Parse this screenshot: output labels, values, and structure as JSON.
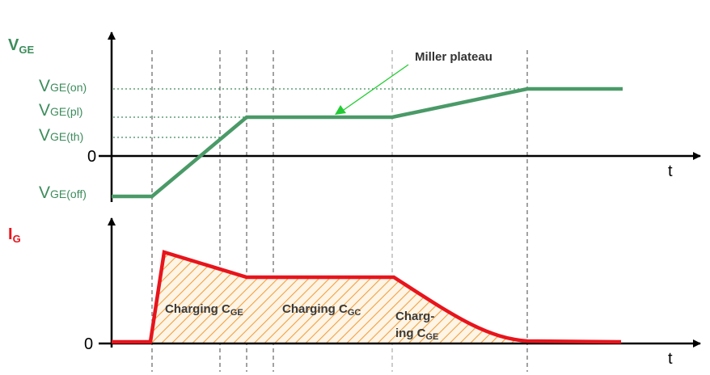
{
  "top_axis": {
    "label": {
      "main": "V",
      "sub": "GE"
    },
    "x_label": "t",
    "levels": [
      {
        "main": "V",
        "sub": "GE(on)"
      },
      {
        "main": "V",
        "sub": "GE(pl)"
      },
      {
        "main": "V",
        "sub": "GE(th)"
      },
      {
        "main": "0"
      },
      {
        "main": "V",
        "sub": "GE(off)"
      }
    ],
    "annotation": "Miller plateau"
  },
  "bottom_axis": {
    "label": {
      "main": "I",
      "sub": "G"
    },
    "x_label": "t",
    "zero": "0",
    "regions": [
      {
        "main": "Charging C",
        "sub": "GE"
      },
      {
        "main": "Charging C",
        "sub": "GC"
      },
      {
        "line1": "Charg-",
        "main": "ing C",
        "sub": "GE"
      }
    ]
  }
}
